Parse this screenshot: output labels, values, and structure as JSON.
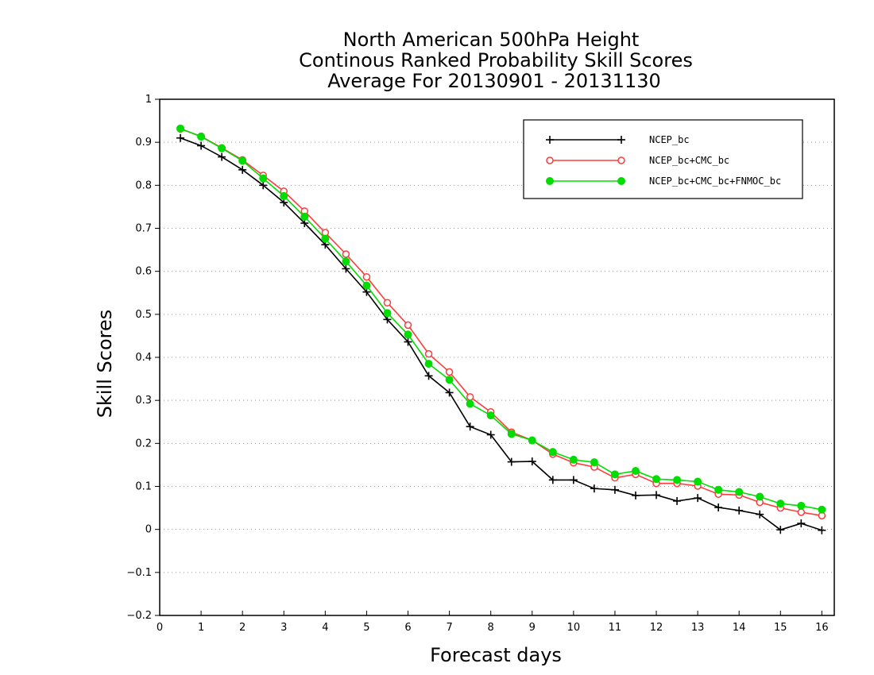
{
  "chart_data": {
    "type": "line",
    "title_lines": [
      "North American 500hPa Height",
      "Continous Ranked Probability Skill Scores",
      "Average For 20130901 - 20131130"
    ],
    "xlabel": "Forecast days",
    "ylabel": "Skill Scores",
    "xlim": [
      0,
      16.3
    ],
    "ylim": [
      -0.2,
      1
    ],
    "x_ticks": [
      0,
      1,
      2,
      3,
      4,
      5,
      6,
      7,
      8,
      9,
      10,
      11,
      12,
      13,
      14,
      15,
      16
    ],
    "x_tick_labels": [
      "0",
      "1",
      "2",
      "3",
      "4",
      "5",
      "6",
      "7",
      "8",
      "9",
      "10",
      "11",
      "12",
      "13",
      "14",
      "15",
      "16"
    ],
    "y_ticks": [
      -0.2,
      -0.1,
      0,
      0.1,
      0.2,
      0.3,
      0.4,
      0.5,
      0.6,
      0.7,
      0.8,
      0.9,
      1
    ],
    "y_tick_labels": [
      "−0.2",
      "−0.1",
      "0",
      "0.1",
      "0.2",
      "0.3",
      "0.4",
      "0.5",
      "0.6",
      "0.7",
      "0.8",
      "0.9",
      "1"
    ],
    "grid": "horizontal dotted",
    "legend_position": "top-right",
    "x": [
      0.5,
      1,
      1.5,
      2,
      2.5,
      3,
      3.5,
      4,
      4.5,
      5,
      5.5,
      6,
      6.5,
      7,
      7.5,
      8,
      8.5,
      9,
      9.5,
      10,
      10.5,
      11,
      11.5,
      12,
      12.5,
      13,
      13.5,
      14,
      14.5,
      15,
      15.5,
      16
    ],
    "series": [
      {
        "name": "NCEP_bc",
        "color": "#000000",
        "marker": "plus",
        "values": [
          0.91,
          0.892,
          0.866,
          0.836,
          0.8,
          0.76,
          0.712,
          0.662,
          0.606,
          0.552,
          0.488,
          0.436,
          0.357,
          0.318,
          0.239,
          0.22,
          0.157,
          0.158,
          0.115,
          0.115,
          0.095,
          0.092,
          0.079,
          0.08,
          0.066,
          0.073,
          0.051,
          0.044,
          0.035,
          -0.001,
          0.014,
          -0.002
        ]
      },
      {
        "name": "NCEP_bc+CMC_bc",
        "color": "#ff3b3b",
        "marker": "open-circle",
        "values": [
          0.931,
          0.914,
          0.887,
          0.859,
          0.823,
          0.786,
          0.74,
          0.69,
          0.64,
          0.587,
          0.527,
          0.475,
          0.408,
          0.366,
          0.308,
          0.273,
          0.226,
          0.207,
          0.175,
          0.155,
          0.145,
          0.12,
          0.128,
          0.107,
          0.107,
          0.101,
          0.082,
          0.08,
          0.063,
          0.05,
          0.04,
          0.032
        ]
      },
      {
        "name": "NCEP_bc+CMC_bc+FNMOC_bc",
        "color": "#00dd00",
        "marker": "filled-circle",
        "values": [
          0.932,
          0.913,
          0.886,
          0.857,
          0.816,
          0.775,
          0.727,
          0.676,
          0.623,
          0.567,
          0.503,
          0.453,
          0.385,
          0.348,
          0.292,
          0.265,
          0.222,
          0.207,
          0.18,
          0.162,
          0.156,
          0.128,
          0.136,
          0.117,
          0.115,
          0.111,
          0.092,
          0.087,
          0.076,
          0.06,
          0.055,
          0.046
        ]
      }
    ]
  }
}
